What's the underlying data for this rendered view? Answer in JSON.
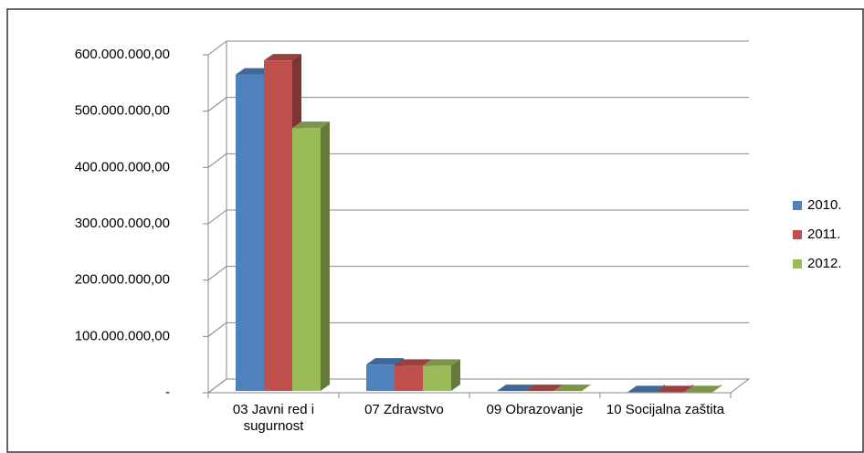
{
  "chart_data": {
    "type": "bar3d",
    "categories": [
      "03 Javni red i sugurnost",
      "07 Zdravstvo",
      "09 Obrazovanje",
      "10 Socijalna zaštita"
    ],
    "series": [
      {
        "name": "2010.",
        "color": "#4f81bd",
        "values": [
          565000000,
          50000000,
          3000000,
          1000000
        ]
      },
      {
        "name": "2011.",
        "color": "#c0504d",
        "values": [
          590000000,
          48000000,
          3000000,
          1000000
        ]
      },
      {
        "name": "2012.",
        "color": "#9bbb59",
        "values": [
          470000000,
          48000000,
          3000000,
          1000000
        ]
      }
    ],
    "ylim": [
      0,
      600000000
    ],
    "yticks": [
      {
        "value": 0,
        "label": "-"
      },
      {
        "value": 100000000,
        "label": "100.000.000,00"
      },
      {
        "value": 200000000,
        "label": "200.000.000,00"
      },
      {
        "value": 300000000,
        "label": "300.000.000,00"
      },
      {
        "value": 400000000,
        "label": "400.000.000,00"
      },
      {
        "value": 500000000,
        "label": "500.000.000,00"
      },
      {
        "value": 600000000,
        "label": "600.000.000,00"
      }
    ],
    "grid": true,
    "legend": "right"
  }
}
